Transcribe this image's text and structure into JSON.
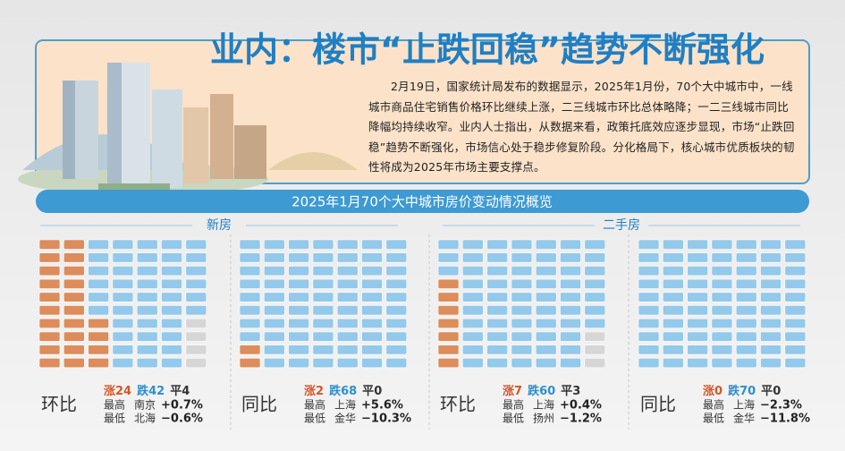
{
  "header": {
    "title": "业内：楼市“止跌回稳”趋势不断强化"
  },
  "article": {
    "text": "2月19日，国家统计局发布的数据显示，2025年1月份，70个大中城市中，一线城市商品住宅销售价格环比继续上涨，二三线城市环比总体略降；一二三线城市同比降幅均持续收窄。业内人士指出，从数据来看，政策托底效应逐步显现，市场“止跌回稳”趋势不断强化，市场信心处于稳步修复阶段。分化格局下，核心城市优质板块的韧性将成为2025年市场主要支撑点。"
  },
  "banner": {
    "title": "2025年1月70个大中城市房价变动情况概览"
  },
  "sections": [
    {
      "label": "新房"
    },
    {
      "label": "二手房"
    }
  ],
  "panels": [
    {
      "label": "环比",
      "rise": {
        "label": "涨",
        "count": 24
      },
      "fall": {
        "label": "跌",
        "count": 42
      },
      "flat": {
        "label": "平",
        "count": 4
      },
      "high": {
        "label": "最高",
        "city": "南京",
        "change": "+0.7%"
      },
      "low": {
        "label": "最低",
        "city": "北海",
        "change": "−0.6%"
      }
    },
    {
      "label": "同比",
      "rise": {
        "label": "涨",
        "count": 2
      },
      "fall": {
        "label": "跌",
        "count": 68
      },
      "flat": {
        "label": "平",
        "count": 0
      },
      "high": {
        "label": "最高",
        "city": "上海",
        "change": "+5.6%"
      },
      "low": {
        "label": "最低",
        "city": "金华",
        "change": "−10.3%"
      }
    },
    {
      "label": "环比",
      "rise": {
        "label": "涨",
        "count": 7
      },
      "fall": {
        "label": "跌",
        "count": 60
      },
      "flat": {
        "label": "平",
        "count": 3
      },
      "high": {
        "label": "最高",
        "city": "上海",
        "change": "+0.4%"
      },
      "low": {
        "label": "最低",
        "city": "扬州",
        "change": "−1.2%"
      }
    },
    {
      "label": "同比",
      "rise": {
        "label": "涨",
        "count": 0
      },
      "fall": {
        "label": "跌",
        "count": 70
      },
      "flat": {
        "label": "平",
        "count": 0
      },
      "high": {
        "label": "最高",
        "city": "上海",
        "change": "−2.3%"
      },
      "low": {
        "label": "最低",
        "city": "金华",
        "change": "−11.8%"
      }
    }
  ]
}
